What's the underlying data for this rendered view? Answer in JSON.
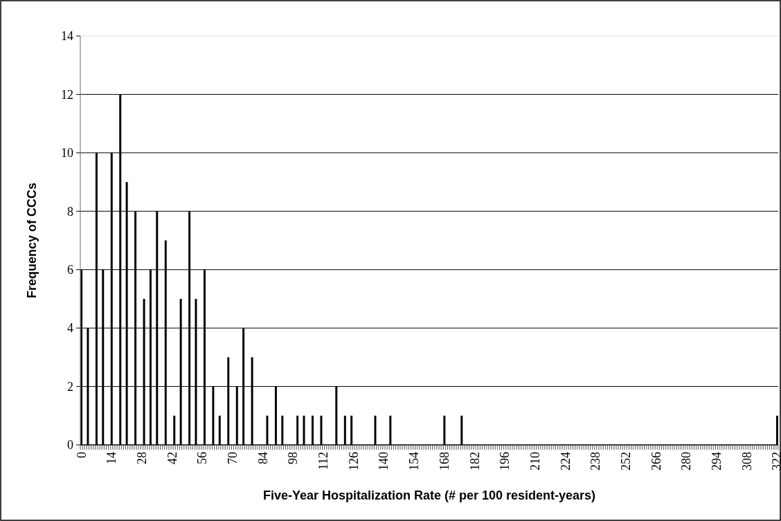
{
  "chart_data": {
    "type": "bar",
    "xlabel": "Five-Year Hospitalization Rate (# per 100 resident-years)",
    "ylabel": "Frequency of CCCs",
    "categories": [
      "0",
      null,
      null,
      null,
      null,
      null,
      null,
      null,
      null,
      null,
      null,
      null,
      null,
      null,
      "14",
      null,
      null,
      null,
      null,
      null,
      null,
      null,
      null,
      null,
      null,
      null,
      null,
      null,
      "28",
      null,
      null,
      null,
      null,
      null,
      null,
      null,
      null,
      null,
      null,
      null,
      null,
      null,
      "42",
      null,
      null,
      null,
      null,
      null,
      null,
      null,
      null,
      null,
      null,
      null,
      null,
      null,
      "56",
      null,
      null,
      null,
      null,
      null,
      null,
      null,
      null,
      null,
      null,
      null,
      null,
      null,
      "70",
      null,
      null,
      null,
      null,
      null,
      null,
      null,
      null,
      null,
      null,
      null,
      null,
      null,
      "84",
      null,
      null,
      null,
      null,
      null,
      null,
      null,
      null,
      null,
      null,
      null,
      null,
      null,
      "98",
      null,
      null,
      null,
      null,
      null,
      null,
      null,
      null,
      null,
      null,
      null,
      null,
      null,
      "112",
      null,
      null,
      null,
      null,
      null,
      null,
      null,
      null,
      null,
      null,
      null,
      null,
      null,
      "126",
      null,
      null,
      null,
      null,
      null,
      null,
      null,
      null,
      null,
      null,
      null,
      null,
      null,
      "140",
      null,
      null,
      null,
      null,
      null,
      null,
      null,
      null,
      null,
      null,
      null,
      null,
      null,
      "154",
      null,
      null,
      null,
      null,
      null,
      null,
      null,
      null,
      null,
      null,
      null,
      null,
      null,
      "168",
      null,
      null,
      null,
      null,
      null,
      null,
      null,
      null,
      null,
      null,
      null,
      null,
      null,
      "182",
      null,
      null,
      null,
      null,
      null,
      null,
      null,
      null,
      null,
      null,
      null,
      null,
      null,
      "196",
      null,
      null,
      null,
      null,
      null,
      null,
      null,
      null,
      null,
      null,
      null,
      null,
      null,
      "210",
      null,
      null,
      null,
      null,
      null,
      null,
      null,
      null,
      null,
      null,
      null,
      null,
      null,
      "224",
      null,
      null,
      null,
      null,
      null,
      null,
      null,
      null,
      null,
      null,
      null,
      null,
      null,
      "238",
      null,
      null,
      null,
      null,
      null,
      null,
      null,
      null,
      null,
      null,
      null,
      null,
      null,
      "252",
      null,
      null,
      null,
      null,
      null,
      null,
      null,
      null,
      null,
      null,
      null,
      null,
      null,
      "266",
      null,
      null,
      null,
      null,
      null,
      null,
      null,
      null,
      null,
      null,
      null,
      null,
      null,
      "280",
      null,
      null,
      null,
      null,
      null,
      null,
      null,
      null,
      null,
      null,
      null,
      null,
      null,
      "294",
      null,
      null,
      null,
      null,
      null,
      null,
      null,
      null,
      null,
      null,
      null,
      null,
      null,
      "308",
      null,
      null,
      null,
      null,
      null,
      null,
      null,
      null,
      null,
      null,
      null,
      null,
      null,
      "322"
    ],
    "values": [
      6,
      0,
      0,
      4,
      0,
      0,
      0,
      10,
      0,
      0,
      6,
      0,
      0,
      0,
      10,
      0,
      0,
      0,
      12,
      0,
      0,
      9,
      0,
      0,
      0,
      8,
      0,
      0,
      0,
      5,
      0,
      0,
      6,
      0,
      0,
      8,
      0,
      0,
      0,
      7,
      0,
      0,
      0,
      1,
      0,
      0,
      5,
      0,
      0,
      0,
      8,
      0,
      0,
      5,
      0,
      0,
      0,
      6,
      0,
      0,
      0,
      2,
      0,
      0,
      1,
      0,
      0,
      0,
      3,
      0,
      0,
      0,
      2,
      0,
      0,
      4,
      0,
      0,
      0,
      3,
      0,
      0,
      0,
      0,
      0,
      0,
      1,
      0,
      0,
      0,
      2,
      0,
      0,
      1,
      0,
      0,
      0,
      0,
      0,
      0,
      1,
      0,
      0,
      1,
      0,
      0,
      0,
      1,
      0,
      0,
      0,
      1,
      0,
      0,
      0,
      0,
      0,
      0,
      2,
      0,
      0,
      0,
      1,
      0,
      0,
      1,
      0,
      0,
      0,
      0,
      0,
      0,
      0,
      0,
      0,
      0,
      1,
      0,
      0,
      0,
      0,
      0,
      0,
      1,
      0,
      0,
      0,
      0,
      0,
      0,
      0,
      0,
      0,
      0,
      0,
      0,
      0,
      0,
      0,
      0,
      0,
      0,
      0,
      0,
      0,
      0,
      0,
      0,
      1,
      0,
      0,
      0,
      0,
      0,
      0,
      0,
      1,
      0,
      0,
      0,
      0,
      0,
      0,
      0,
      0,
      0,
      0,
      0,
      0,
      0,
      0,
      0,
      0,
      0,
      0,
      0,
      0,
      0,
      0,
      0,
      0,
      0,
      0,
      0,
      0,
      0,
      0,
      0,
      0,
      0,
      0,
      0,
      0,
      0,
      0,
      0,
      0,
      0,
      0,
      0,
      0,
      0,
      0,
      0,
      0,
      0,
      0,
      0,
      0,
      0,
      0,
      0,
      0,
      0,
      0,
      0,
      0,
      0,
      0,
      0,
      0,
      0,
      0,
      0,
      0,
      0,
      0,
      0,
      0,
      0,
      0,
      0,
      0,
      0,
      0,
      0,
      0,
      0,
      0,
      0,
      0,
      0,
      0,
      0,
      0,
      0,
      0,
      0,
      0,
      0,
      0,
      0,
      0,
      0,
      0,
      0,
      0,
      0,
      0,
      0,
      0,
      0,
      0,
      0,
      0,
      0,
      0,
      0,
      0,
      0,
      0,
      0,
      0,
      0,
      0,
      0,
      0,
      0,
      0,
      0,
      0,
      0,
      0,
      0,
      0,
      0,
      0,
      0,
      0,
      0,
      0,
      0,
      0,
      0,
      0,
      0,
      0,
      0,
      0,
      0,
      0,
      0,
      1
    ],
    "color": "#000000",
    "ylim": [
      0,
      14
    ],
    "yticks": [
      0,
      2,
      4,
      6,
      8,
      10,
      12,
      14
    ],
    "grid": "y"
  }
}
